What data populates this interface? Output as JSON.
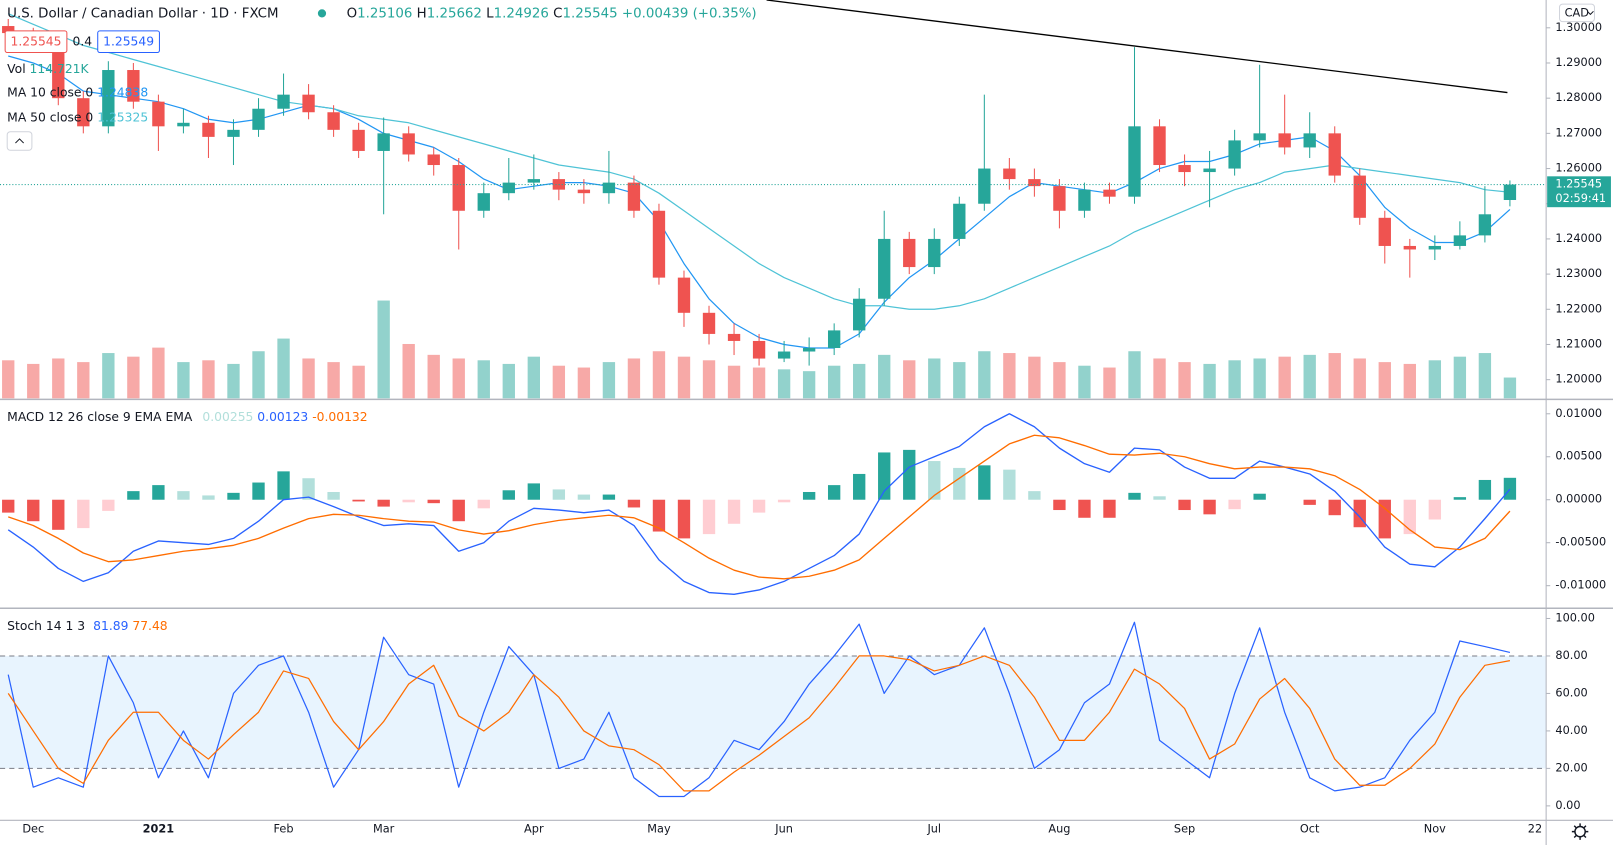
{
  "header": {
    "symbol": "U.S. Dollar / Canadian Dollar · 1D · FXCM",
    "ohlc_labels": [
      "O",
      "H",
      "L",
      "C"
    ],
    "change": "+0.00439 (+0.35%)"
  },
  "trade": {
    "spread": 0.4,
    "buy": 1.25549
  },
  "price_axis": {
    "currency": "CAD",
    "countdown": "02:59:41"
  },
  "chart_data": [
    {
      "type": "candlestick",
      "categories": [
        null,
        "Dec",
        null,
        null,
        null,
        null,
        "2021",
        null,
        null,
        null,
        null,
        "Feb",
        null,
        null,
        null,
        "Mar",
        null,
        null,
        null,
        null,
        null,
        "Apr",
        null,
        null,
        null,
        null,
        "May",
        null,
        null,
        null,
        null,
        "Jun",
        null,
        null,
        null,
        null,
        null,
        "Jul",
        null,
        null,
        null,
        null,
        "Aug",
        null,
        null,
        null,
        null,
        "Sep",
        null,
        null,
        null,
        null,
        "Oct",
        null,
        null,
        null,
        null,
        "Nov",
        null,
        null,
        null,
        "22"
      ],
      "open": [
        1.3005,
        1.2985,
        1.296,
        1.28,
        1.272,
        1.288,
        1.279,
        1.272,
        1.273,
        1.269,
        1.271,
        1.277,
        1.281,
        1.276,
        1.271,
        1.265,
        1.27,
        1.264,
        1.261,
        1.248,
        1.253,
        1.256,
        1.257,
        1.254,
        1.253,
        1.256,
        1.248,
        1.229,
        1.219,
        1.213,
        1.211,
        1.206,
        1.208,
        1.209,
        1.214,
        1.223,
        1.24,
        1.232,
        1.24,
        1.25,
        1.26,
        1.257,
        1.255,
        1.248,
        1.254,
        1.252,
        1.272,
        1.261,
        1.259,
        1.26,
        1.268,
        1.27,
        1.266,
        1.27,
        1.258,
        1.246,
        1.238,
        1.237,
        1.238,
        1.241,
        1.25106,
        null
      ],
      "high": [
        1.3025,
        1.3,
        1.2975,
        1.282,
        1.2905,
        1.29,
        1.281,
        1.277,
        1.275,
        1.274,
        1.28,
        1.287,
        1.284,
        1.278,
        1.273,
        1.2745,
        1.272,
        1.266,
        1.263,
        1.256,
        1.263,
        1.264,
        1.259,
        1.257,
        1.265,
        1.258,
        1.25,
        1.231,
        1.221,
        1.216,
        1.213,
        1.211,
        1.212,
        1.216,
        1.226,
        1.248,
        1.242,
        1.243,
        1.252,
        1.281,
        1.263,
        1.26,
        1.257,
        1.256,
        1.256,
        1.2945,
        1.274,
        1.264,
        1.265,
        1.271,
        1.2895,
        1.281,
        1.276,
        1.272,
        1.26,
        1.248,
        1.24,
        1.241,
        1.245,
        1.255,
        1.25662,
        null
      ],
      "low": [
        1.2965,
        1.294,
        1.278,
        1.27,
        1.27,
        1.277,
        1.265,
        1.27,
        1.263,
        1.261,
        1.269,
        1.275,
        1.274,
        1.269,
        1.263,
        1.247,
        1.262,
        1.258,
        1.237,
        1.246,
        1.251,
        1.254,
        1.251,
        1.25,
        1.25,
        1.246,
        1.227,
        1.215,
        1.21,
        1.207,
        1.204,
        1.205,
        1.204,
        1.207,
        1.212,
        1.221,
        1.23,
        1.23,
        1.238,
        1.248,
        1.254,
        1.252,
        1.243,
        1.246,
        1.25,
        1.25,
        1.259,
        1.255,
        1.249,
        1.258,
        1.266,
        1.264,
        1.263,
        1.256,
        1.244,
        1.233,
        1.229,
        1.234,
        1.237,
        1.239,
        1.24926,
        null
      ],
      "close": [
        1.2985,
        1.296,
        1.28,
        1.272,
        1.288,
        1.279,
        1.272,
        1.273,
        1.269,
        1.271,
        1.277,
        1.281,
        1.276,
        1.271,
        1.265,
        1.27,
        1.264,
        1.261,
        1.248,
        1.253,
        1.256,
        1.257,
        1.254,
        1.253,
        1.256,
        1.248,
        1.229,
        1.219,
        1.213,
        1.211,
        1.206,
        1.208,
        1.209,
        1.214,
        1.223,
        1.24,
        1.232,
        1.24,
        1.25,
        1.26,
        1.257,
        1.255,
        1.248,
        1.254,
        1.252,
        1.272,
        1.261,
        1.259,
        1.26,
        1.268,
        1.27,
        1.266,
        1.27,
        1.258,
        1.246,
        1.238,
        1.237,
        1.238,
        1.241,
        1.247,
        1.25545,
        null
      ],
      "color_up": "#26a69a",
      "color_down": "#ef5350",
      "volume": {
        "name": "Vol",
        "legend_value": "114.721K",
        "vlim": [
          0,
          2200
        ],
        "values": [
          210,
          190,
          220,
          200,
          250,
          230,
          280,
          200,
          210,
          190,
          260,
          330,
          220,
          200,
          180,
          540,
          300,
          240,
          220,
          210,
          190,
          230,
          180,
          170,
          200,
          220,
          260,
          230,
          210,
          180,
          170,
          160,
          150,
          180,
          190,
          240,
          210,
          220,
          200,
          260,
          250,
          230,
          200,
          180,
          170,
          260,
          220,
          200,
          190,
          210,
          220,
          230,
          240,
          250,
          220,
          200,
          190,
          210,
          230,
          250,
          114.721,
          null
        ]
      },
      "series": [
        {
          "name": "MA 10 close 0",
          "color": "#2196f3",
          "values": [
            1.292,
            1.29,
            1.287,
            1.282,
            1.281,
            1.28,
            1.279,
            1.277,
            1.274,
            1.273,
            1.274,
            1.276,
            1.278,
            1.277,
            1.274,
            1.27,
            1.268,
            1.266,
            1.262,
            1.257,
            1.254,
            1.255,
            1.256,
            1.256,
            1.255,
            1.253,
            1.245,
            1.233,
            1.223,
            1.216,
            1.212,
            1.21,
            1.209,
            1.209,
            1.213,
            1.222,
            1.229,
            1.234,
            1.24,
            1.246,
            1.252,
            1.256,
            1.255,
            1.254,
            1.253,
            1.256,
            1.26,
            1.262,
            1.262,
            1.264,
            1.267,
            1.268,
            1.269,
            1.265,
            1.258,
            1.249,
            1.243,
            1.239,
            1.239,
            1.242,
            1.24838,
            null
          ]
        },
        {
          "name": "MA 50 close 0",
          "color": "#4fc3d6",
          "values": [
            1.304,
            1.301,
            1.298,
            1.295,
            1.293,
            1.291,
            1.289,
            1.287,
            1.285,
            1.283,
            1.281,
            1.279,
            1.278,
            1.277,
            1.275,
            1.274,
            1.273,
            1.271,
            1.269,
            1.267,
            1.265,
            1.263,
            1.261,
            1.26,
            1.259,
            1.257,
            1.253,
            1.248,
            1.243,
            1.238,
            1.233,
            1.229,
            1.226,
            1.223,
            1.221,
            1.221,
            1.22,
            1.22,
            1.221,
            1.223,
            1.226,
            1.229,
            1.232,
            1.235,
            1.238,
            1.242,
            1.245,
            1.248,
            1.251,
            1.254,
            1.256,
            1.259,
            1.26,
            1.261,
            1.26,
            1.259,
            1.258,
            1.257,
            1.256,
            1.254,
            1.25325,
            null
          ]
        }
      ],
      "trend_line": {
        "x": [
          30.3,
          59.9
        ],
        "y": [
          1.3079,
          1.2816
        ],
        "color": "#000000"
      },
      "ylim": [
        1.1947,
        1.3079
      ],
      "yticks": [
        {
          "value": 1.3,
          "label": "1.30000"
        },
        {
          "value": 1.29,
          "label": "1.29000"
        },
        {
          "value": 1.28,
          "label": "1.28000"
        },
        {
          "value": 1.27,
          "label": "1.27000"
        },
        {
          "value": 1.26,
          "label": "1.26000"
        },
        {
          "value": 1.25,
          "label": "1.25000"
        },
        {
          "value": 1.24,
          "label": "1.24000"
        },
        {
          "value": 1.23,
          "label": "1.23000"
        },
        {
          "value": 1.22,
          "label": "1.22000"
        },
        {
          "value": 1.21,
          "label": "1.21000"
        },
        {
          "value": 1.2,
          "label": "1.20000"
        }
      ],
      "grid": false
    },
    {
      "type": "macd",
      "title": "MACD 12 26 close 9 EMA EMA",
      "histogram": {
        "colors": [
          "#26a69a",
          "#b2dfdb",
          "#ffcdd2",
          "#ef5350"
        ],
        "values": [
          -0.0015,
          -0.0025,
          -0.0035,
          -0.0033,
          -0.0013,
          0.001,
          0.0017,
          0.001,
          0.0005,
          0.0008,
          0.002,
          0.0033,
          0.0025,
          0.0009,
          -0.0002,
          -0.0008,
          -0.0003,
          -0.0004,
          -0.0025,
          -0.001,
          0.0011,
          0.0019,
          0.0012,
          0.0006,
          0.0006,
          -0.0009,
          -0.0037,
          -0.0045,
          -0.004,
          -0.0028,
          -0.0015,
          -0.0003,
          0.0009,
          0.0017,
          0.003,
          0.0055,
          0.0058,
          0.0045,
          0.0037,
          0.004,
          0.0035,
          0.001,
          -0.0012,
          -0.0021,
          -0.0021,
          0.0008,
          0.0004,
          -0.0012,
          -0.0017,
          -0.0011,
          0.0007,
          0.0,
          -0.0006,
          -0.0018,
          -0.0032,
          -0.0045,
          -0.004,
          -0.0023,
          0.0003,
          0.0023,
          0.00255,
          null
        ]
      },
      "series": [
        {
          "color": "#2962ff",
          "values": [
            -0.0035,
            -0.0055,
            -0.008,
            -0.0095,
            -0.0085,
            -0.006,
            -0.0048,
            -0.005,
            -0.0052,
            -0.0045,
            -0.0025,
            0.0,
            0.0003,
            -0.0008,
            -0.002,
            -0.003,
            -0.0028,
            -0.003,
            -0.006,
            -0.005,
            -0.0025,
            -0.001,
            -0.0012,
            -0.0015,
            -0.0012,
            -0.003,
            -0.007,
            -0.0095,
            -0.0108,
            -0.011,
            -0.0105,
            -0.0095,
            -0.008,
            -0.0065,
            -0.004,
            0.001,
            0.0038,
            0.005,
            0.0062,
            0.0085,
            0.01,
            0.0085,
            0.006,
            0.0042,
            0.0032,
            0.006,
            0.0058,
            0.0038,
            0.0025,
            0.0025,
            0.0045,
            0.0038,
            0.003,
            0.001,
            -0.002,
            -0.0055,
            -0.0075,
            -0.0078,
            -0.0055,
            -0.0022,
            0.00123,
            null
          ]
        },
        {
          "color": "#ff6d00",
          "values": [
            -0.002,
            -0.003,
            -0.0045,
            -0.0062,
            -0.0072,
            -0.007,
            -0.0065,
            -0.006,
            -0.0057,
            -0.0053,
            -0.0045,
            -0.0033,
            -0.0022,
            -0.0017,
            -0.0018,
            -0.0022,
            -0.0025,
            -0.0026,
            -0.0035,
            -0.004,
            -0.0036,
            -0.0029,
            -0.0024,
            -0.0021,
            -0.0018,
            -0.0021,
            -0.0033,
            -0.005,
            -0.0068,
            -0.0082,
            -0.009,
            -0.0092,
            -0.0089,
            -0.0082,
            -0.007,
            -0.0045,
            -0.002,
            0.0005,
            0.0025,
            0.0045,
            0.0065,
            0.0075,
            0.0072,
            0.0063,
            0.0053,
            0.0052,
            0.0054,
            0.005,
            0.0042,
            0.0036,
            0.0038,
            0.0038,
            0.0036,
            0.0028,
            0.0012,
            -0.001,
            -0.0035,
            -0.0055,
            -0.0058,
            -0.0045,
            -0.00132,
            null
          ]
        }
      ],
      "ylim": [
        -0.01251,
        0.01144
      ],
      "yticks": [
        {
          "value": 0.01,
          "label": "0.01000"
        },
        {
          "value": 0.005,
          "label": "0.00500"
        },
        {
          "value": 0,
          "label": "0.00000"
        },
        {
          "value": -0.005,
          "label": "-0.00500"
        },
        {
          "value": -0.01,
          "label": "-0.01000"
        }
      ]
    },
    {
      "type": "stochastic",
      "title": "Stoch 14 1 3",
      "series": [
        {
          "color": "#2962ff",
          "values": [
            70,
            10,
            15,
            10,
            80,
            55,
            15,
            40,
            15,
            60,
            75,
            80,
            50,
            10,
            30,
            90,
            70,
            65,
            10,
            50,
            85,
            70,
            20,
            25,
            50,
            15,
            5,
            5,
            15,
            35,
            30,
            45,
            65,
            80,
            97,
            60,
            80,
            70,
            75,
            95,
            60,
            20,
            30,
            55,
            65,
            98,
            35,
            25,
            15,
            60,
            95,
            50,
            15,
            8,
            10,
            15,
            35,
            50,
            88,
            85,
            81.89,
            null
          ]
        },
        {
          "color": "#ff6d00",
          "values": [
            60,
            40,
            20,
            12,
            35,
            50,
            50,
            35,
            25,
            38,
            50,
            72,
            68,
            45,
            30,
            45,
            65,
            75,
            48,
            40,
            50,
            70,
            58,
            40,
            32,
            30,
            22,
            8,
            8,
            18,
            27,
            37,
            47,
            63,
            80,
            80,
            78,
            72,
            75,
            80,
            75,
            58,
            35,
            35,
            50,
            73,
            65,
            52,
            25,
            33,
            57,
            68,
            52,
            25,
            11,
            11,
            20,
            33,
            58,
            75,
            77.48,
            null
          ]
        }
      ],
      "bands": [
        20,
        80
      ],
      "band_color": "#2196f3",
      "ylim": [
        -7.7,
        104.9
      ],
      "yticks": [
        {
          "value": 100,
          "label": "100.00"
        },
        {
          "value": 80,
          "label": "80.00"
        },
        {
          "value": 60,
          "label": "60.00"
        },
        {
          "value": 40,
          "label": "40.00"
        },
        {
          "value": 20,
          "label": "20.00"
        },
        {
          "value": 0,
          "label": "0.00"
        }
      ]
    }
  ]
}
